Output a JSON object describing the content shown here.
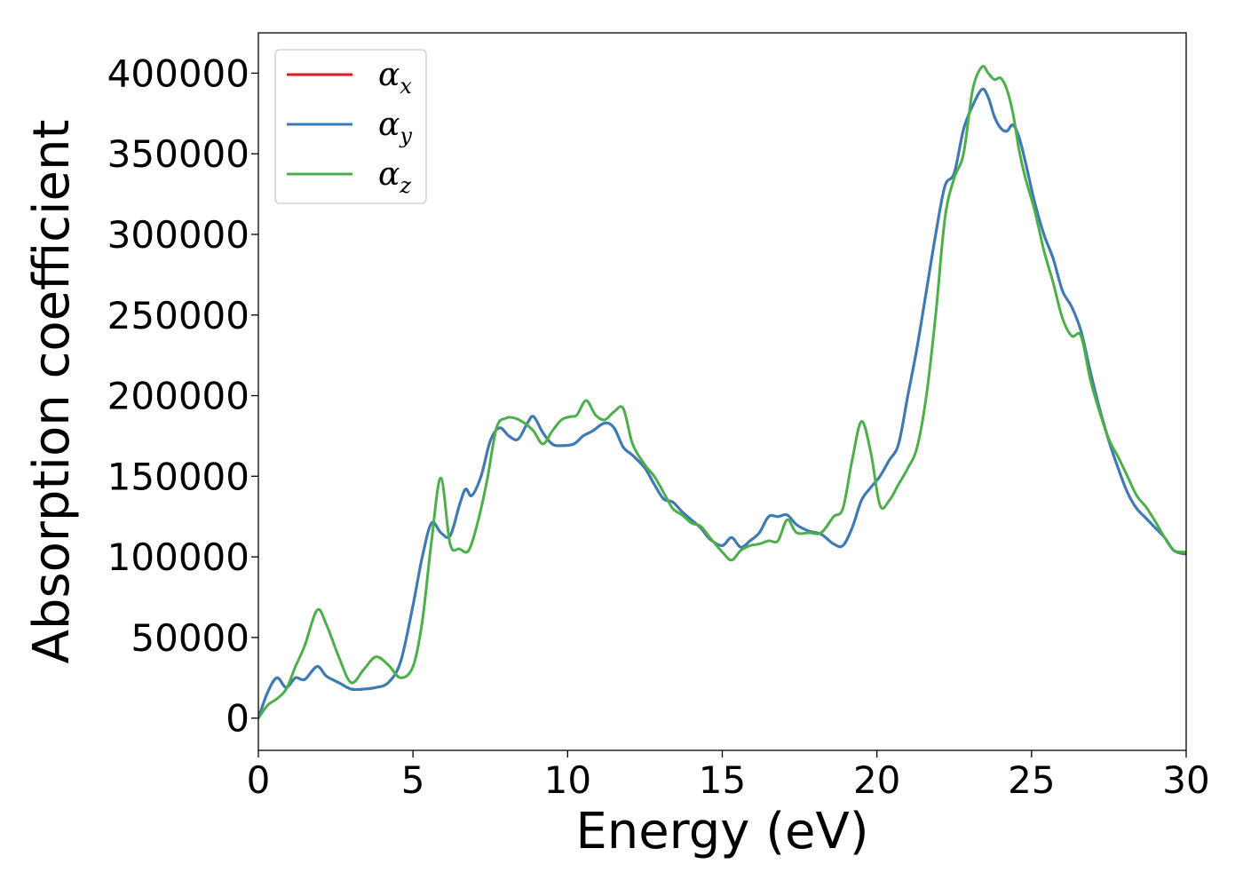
{
  "chart_data": {
    "type": "line",
    "title": "",
    "xlabel": "Energy (eV)",
    "ylabel": "Absorption coefficient",
    "xlim": [
      0,
      30
    ],
    "ylim": [
      -20000,
      425000
    ],
    "xticks": [
      0,
      5,
      10,
      15,
      20,
      25,
      30
    ],
    "yticks": [
      0,
      50000,
      100000,
      150000,
      200000,
      250000,
      300000,
      350000,
      400000
    ],
    "grid": false,
    "legend_position": "top-left",
    "series": [
      {
        "name": "α",
        "sub": "x",
        "color": "#e41a1c",
        "x": [
          0,
          0.3,
          0.6,
          0.9,
          1.2,
          1.5,
          1.9,
          2.2,
          2.6,
          3.0,
          3.4,
          3.8,
          4.2,
          4.6,
          5.0,
          5.3,
          5.6,
          5.9,
          6.2,
          6.5,
          6.7,
          6.9,
          7.2,
          7.5,
          7.8,
          8.1,
          8.4,
          8.7,
          8.9,
          9.2,
          9.5,
          9.8,
          10.2,
          10.5,
          10.8,
          11.2,
          11.5,
          11.8,
          12.1,
          12.5,
          12.8,
          13.1,
          13.4,
          13.7,
          14.0,
          14.3,
          14.6,
          15.0,
          15.3,
          15.6,
          15.9,
          16.2,
          16.5,
          16.8,
          17.1,
          17.4,
          17.8,
          18.2,
          18.6,
          18.9,
          19.2,
          19.5,
          19.8,
          20.1,
          20.4,
          20.7,
          21.0,
          21.3,
          21.6,
          21.9,
          22.2,
          22.5,
          22.8,
          23.1,
          23.4,
          23.6,
          23.8,
          24.0,
          24.2,
          24.4,
          24.6,
          24.8,
          25.1,
          25.4,
          25.7,
          26.0,
          26.3,
          26.6,
          26.9,
          27.2,
          27.5,
          27.8,
          28.1,
          28.4,
          28.7,
          29.0,
          29.3,
          29.6,
          29.9,
          30.0
        ],
        "y": [
          0,
          16000,
          25000,
          19000,
          25000,
          24000,
          32000,
          26000,
          22000,
          18000,
          18000,
          19000,
          22000,
          35000,
          70000,
          100000,
          121000,
          115000,
          113000,
          132000,
          142000,
          138000,
          150000,
          172000,
          180000,
          175000,
          173000,
          183000,
          187000,
          177000,
          170000,
          169000,
          170000,
          175000,
          178000,
          183000,
          180000,
          168000,
          163000,
          155000,
          145000,
          136000,
          134000,
          128000,
          123000,
          118000,
          111000,
          107000,
          112000,
          106000,
          110000,
          115000,
          125000,
          125000,
          126000,
          120000,
          116000,
          114000,
          108000,
          107000,
          118000,
          135000,
          143000,
          150000,
          160000,
          170000,
          200000,
          230000,
          265000,
          300000,
          330000,
          338000,
          365000,
          380000,
          390000,
          385000,
          373000,
          366000,
          364000,
          368000,
          360000,
          345000,
          320000,
          300000,
          285000,
          265000,
          255000,
          240000,
          215000,
          192000,
          172000,
          155000,
          140000,
          130000,
          124000,
          118000,
          112000,
          104000,
          102000,
          102000
        ]
      },
      {
        "name": "α",
        "sub": "y",
        "color": "#377eb8",
        "x": [
          0,
          0.3,
          0.6,
          0.9,
          1.2,
          1.5,
          1.9,
          2.2,
          2.6,
          3.0,
          3.4,
          3.8,
          4.2,
          4.6,
          5.0,
          5.3,
          5.6,
          5.9,
          6.2,
          6.5,
          6.7,
          6.9,
          7.2,
          7.5,
          7.8,
          8.1,
          8.4,
          8.7,
          8.9,
          9.2,
          9.5,
          9.8,
          10.2,
          10.5,
          10.8,
          11.2,
          11.5,
          11.8,
          12.1,
          12.5,
          12.8,
          13.1,
          13.4,
          13.7,
          14.0,
          14.3,
          14.6,
          15.0,
          15.3,
          15.6,
          15.9,
          16.2,
          16.5,
          16.8,
          17.1,
          17.4,
          17.8,
          18.2,
          18.6,
          18.9,
          19.2,
          19.5,
          19.8,
          20.1,
          20.4,
          20.7,
          21.0,
          21.3,
          21.6,
          21.9,
          22.2,
          22.5,
          22.8,
          23.1,
          23.4,
          23.6,
          23.8,
          24.0,
          24.2,
          24.4,
          24.6,
          24.8,
          25.1,
          25.4,
          25.7,
          26.0,
          26.3,
          26.6,
          26.9,
          27.2,
          27.5,
          27.8,
          28.1,
          28.4,
          28.7,
          29.0,
          29.3,
          29.6,
          29.9,
          30.0
        ],
        "y": [
          0,
          16000,
          25000,
          19000,
          25000,
          24000,
          32000,
          26000,
          22000,
          18000,
          18000,
          19000,
          22000,
          35000,
          70000,
          100000,
          121000,
          115000,
          113000,
          132000,
          142000,
          138000,
          150000,
          172000,
          180000,
          175000,
          173000,
          183000,
          187000,
          177000,
          170000,
          169000,
          170000,
          175000,
          178000,
          183000,
          180000,
          168000,
          163000,
          155000,
          145000,
          136000,
          134000,
          128000,
          123000,
          118000,
          111000,
          107000,
          112000,
          106000,
          110000,
          115000,
          125000,
          125000,
          126000,
          120000,
          116000,
          114000,
          108000,
          107000,
          118000,
          135000,
          143000,
          150000,
          160000,
          170000,
          200000,
          230000,
          265000,
          300000,
          330000,
          338000,
          365000,
          380000,
          390000,
          385000,
          373000,
          366000,
          364000,
          368000,
          360000,
          345000,
          320000,
          300000,
          285000,
          265000,
          255000,
          240000,
          215000,
          192000,
          172000,
          155000,
          140000,
          130000,
          124000,
          118000,
          112000,
          104000,
          102000,
          102000
        ]
      },
      {
        "name": "α",
        "sub": "z",
        "color": "#4daf4a",
        "x": [
          0,
          0.3,
          0.6,
          0.9,
          1.2,
          1.5,
          1.9,
          2.2,
          2.6,
          3.0,
          3.4,
          3.8,
          4.2,
          4.6,
          5.0,
          5.3,
          5.6,
          5.9,
          6.2,
          6.5,
          6.8,
          7.1,
          7.4,
          7.7,
          8.0,
          8.3,
          8.6,
          8.9,
          9.2,
          9.5,
          9.8,
          10.1,
          10.3,
          10.6,
          10.9,
          11.2,
          11.5,
          11.8,
          12.1,
          12.5,
          12.8,
          13.1,
          13.4,
          13.7,
          14.0,
          14.3,
          14.6,
          15.0,
          15.3,
          15.6,
          15.9,
          16.2,
          16.5,
          16.8,
          17.1,
          17.4,
          17.8,
          18.2,
          18.6,
          18.9,
          19.2,
          19.5,
          19.8,
          20.1,
          20.4,
          20.7,
          21.0,
          21.3,
          21.6,
          21.9,
          22.2,
          22.5,
          22.8,
          23.1,
          23.4,
          23.6,
          23.8,
          24.0,
          24.2,
          24.4,
          24.6,
          24.8,
          25.1,
          25.4,
          25.7,
          26.0,
          26.3,
          26.6,
          26.9,
          27.2,
          27.5,
          27.8,
          28.1,
          28.4,
          28.7,
          29.0,
          29.3,
          29.6,
          29.9,
          30.0
        ],
        "y": [
          0,
          8000,
          12000,
          18000,
          32000,
          45000,
          67000,
          58000,
          38000,
          22000,
          30000,
          38000,
          33000,
          25000,
          32000,
          60000,
          110000,
          149000,
          108000,
          105000,
          104000,
          122000,
          148000,
          180000,
          186000,
          186000,
          183000,
          178000,
          170000,
          178000,
          185000,
          187000,
          188000,
          197000,
          188000,
          185000,
          190000,
          192000,
          170000,
          157000,
          150000,
          140000,
          130000,
          126000,
          121000,
          119000,
          112000,
          103000,
          98000,
          104000,
          107000,
          108000,
          110000,
          110000,
          123000,
          115000,
          115000,
          115000,
          125000,
          130000,
          160000,
          184000,
          165000,
          132000,
          135000,
          145000,
          155000,
          168000,
          200000,
          250000,
          310000,
          335000,
          350000,
          390000,
          404000,
          400000,
          396000,
          397000,
          390000,
          375000,
          352000,
          335000,
          315000,
          290000,
          270000,
          248000,
          237000,
          237000,
          210000,
          190000,
          173000,
          162000,
          150000,
          138000,
          131000,
          122000,
          112000,
          104000,
          103000,
          103000
        ]
      }
    ]
  }
}
